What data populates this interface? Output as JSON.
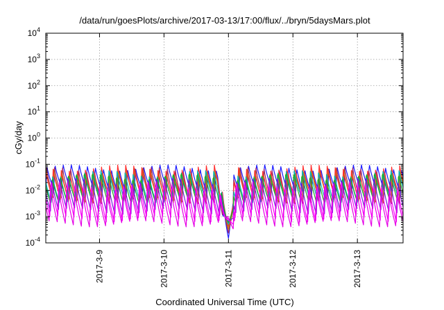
{
  "chart_data": {
    "type": "line",
    "title": "/data/run/goesPlots/archive/2017-03-13/17:00/flux/../bryn/5daysMars.plot",
    "xlabel": "Coordinated Universal Time (UTC)",
    "ylabel": "cGy/day",
    "y_scale": "log",
    "ylim": [
      0.0001,
      10000
    ],
    "y_ticks": [
      {
        "value": 0.0001,
        "base": "10",
        "exp": "-4"
      },
      {
        "value": 0.001,
        "base": "10",
        "exp": "-3"
      },
      {
        "value": 0.01,
        "base": "10",
        "exp": "-2"
      },
      {
        "value": 0.1,
        "base": "10",
        "exp": "-1"
      },
      {
        "value": 1,
        "base": "10",
        "exp": "0"
      },
      {
        "value": 10,
        "base": "10",
        "exp": "1"
      },
      {
        "value": 100,
        "base": "10",
        "exp": "2"
      },
      {
        "value": 1000,
        "base": "10",
        "exp": "3"
      },
      {
        "value": 10000,
        "base": "10",
        "exp": "4"
      }
    ],
    "xlim": [
      "2017-03-08 04:00",
      "2017-03-13 17:00"
    ],
    "x_ticks": [
      "2017-3-9",
      "2017-3-10",
      "2017-3-11",
      "2017-3-12",
      "2017-3-13"
    ],
    "grid": true,
    "legend": "none",
    "pattern": {
      "cycle_hours": 3,
      "dip_time": "2017-03-11 00:00",
      "dip_min": 0.00015
    },
    "series": [
      {
        "color": "#1a1aff",
        "peak": 0.09,
        "trough": 0.009
      },
      {
        "color": "#a0206a",
        "peak": 0.07,
        "trough": 0.004
      },
      {
        "color": "#b8860b",
        "peak": 0.06,
        "trough": 0.004
      },
      {
        "color": "#ff2d2d",
        "peak": 0.075,
        "trough": 0.006
      },
      {
        "color": "#00b3b3",
        "peak": 0.05,
        "trough": 0.004
      },
      {
        "color": "#1faa1f",
        "peak": 0.045,
        "trough": 0.0035
      },
      {
        "color": "#6a1fd6",
        "peak": 0.03,
        "trough": 0.0015
      },
      {
        "color": "#ff00ff",
        "peak": 0.02,
        "trough": 0.0008
      },
      {
        "color": "#e600e6",
        "peak": 0.012,
        "trough": 0.0005
      }
    ]
  }
}
